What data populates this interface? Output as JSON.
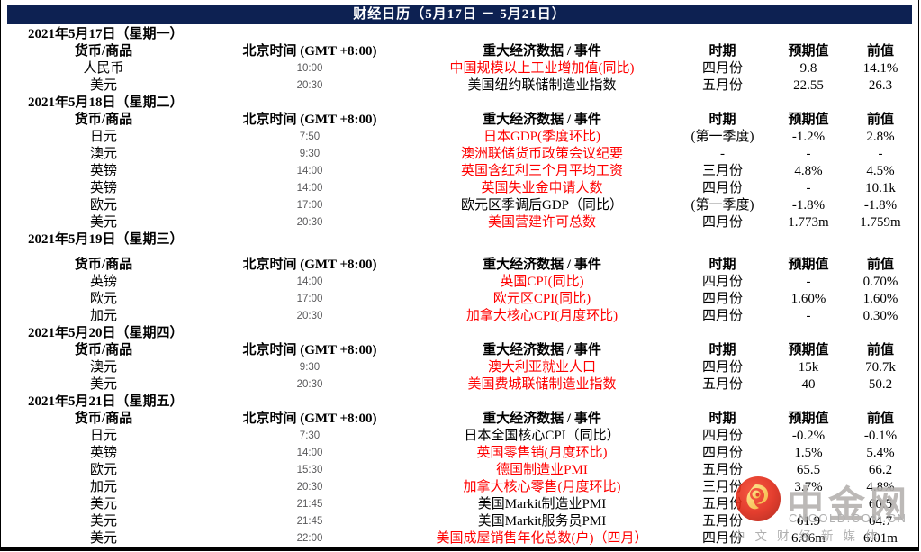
{
  "title": "财经日历（5月17日 － 5月21日）",
  "table": {
    "headers": {
      "currency": "货币/商品",
      "time": "北京时间 (GMT +8:00)",
      "event": "重大经济数据 / 事件",
      "period": "时期",
      "expected": "预期值",
      "previous": "前值"
    },
    "sections": [
      {
        "date": "2021年5月17日（星期一）",
        "rows": [
          {
            "currency": "人民币",
            "time": "10:00",
            "event": "中国规模以上工业增加值(同比)",
            "highlight": true,
            "period": "四月份",
            "expected": "9.8",
            "previous": "14.1%"
          },
          {
            "currency": "美元",
            "time": "20:30",
            "event": "美国纽约联储制造业指数",
            "highlight": false,
            "period": "五月份",
            "expected": "22.55",
            "previous": "26.3"
          }
        ]
      },
      {
        "date": "2021年5月18日（星期二）",
        "rows": [
          {
            "currency": "日元",
            "time": "7:50",
            "event": "日本GDP(季度环比)",
            "highlight": true,
            "period": "(第一季度)",
            "expected": "-1.2%",
            "previous": "2.8%"
          },
          {
            "currency": "澳元",
            "time": "9:30",
            "event": "澳洲联储货币政策会议纪要",
            "highlight": true,
            "period": "-",
            "expected": "-",
            "previous": "-"
          },
          {
            "currency": "英镑",
            "time": "14:00",
            "event": "英国含红利三个月平均工资",
            "highlight": true,
            "period": "三月份",
            "expected": "4.8%",
            "previous": "4.5%"
          },
          {
            "currency": "英镑",
            "time": "14:00",
            "event": "英国失业金申请人数",
            "highlight": true,
            "period": "四月份",
            "expected": "-",
            "previous": "10.1k"
          },
          {
            "currency": "欧元",
            "time": "17:00",
            "event": "欧元区季调后GDP（同比）",
            "highlight": false,
            "period": "(第一季度)",
            "expected": "-1.8%",
            "previous": "-1.8%"
          },
          {
            "currency": "美元",
            "time": "20:30",
            "event": "美国营建许可总数",
            "highlight": true,
            "period": "四月份",
            "expected": "1.773m",
            "previous": "1.759m"
          }
        ]
      },
      {
        "date": "2021年5月19日（星期三）",
        "gap": true,
        "rows": [
          {
            "currency": "英镑",
            "time": "14:00",
            "event": "英国CPI(同比)",
            "highlight": true,
            "period": "四月份",
            "expected": "-",
            "previous": "0.70%"
          },
          {
            "currency": "欧元",
            "time": "17:00",
            "event": "欧元区CPI(同比)",
            "highlight": true,
            "period": "四月份",
            "expected": "1.60%",
            "previous": "1.60%"
          },
          {
            "currency": "加元",
            "time": "20:30",
            "event": "加拿大核心CPI(月度环比)",
            "highlight": true,
            "period": "四月份",
            "expected": "-",
            "previous": "0.30%"
          }
        ]
      },
      {
        "date": "2021年5月20日（星期四）",
        "rows": [
          {
            "currency": "澳元",
            "time": "9:30",
            "event": "澳大利亚就业人口",
            "highlight": true,
            "period": "四月份",
            "expected": "15k",
            "previous": "70.7k"
          },
          {
            "currency": "美元",
            "time": "20:30",
            "event": "美国费城联储制造业指数",
            "highlight": true,
            "period": "五月份",
            "expected": "40",
            "previous": "50.2"
          }
        ]
      },
      {
        "date": "2021年5月21日（星期五）",
        "rows": [
          {
            "currency": "日元",
            "time": "7:30",
            "event": "日本全国核心CPI（同比）",
            "highlight": false,
            "period": "四月份",
            "expected": "-0.2%",
            "previous": "-0.1%"
          },
          {
            "currency": "英镑",
            "time": "14:00",
            "event": "英国零售销(月度环比)",
            "highlight": true,
            "period": "四月份",
            "expected": "1.5%",
            "previous": "5.4%"
          },
          {
            "currency": "欧元",
            "time": "15:30",
            "event": "德国制造业PMI",
            "highlight": true,
            "period": "五月份",
            "expected": "65.5",
            "previous": "66.2"
          },
          {
            "currency": "加元",
            "time": "20:30",
            "event": "加拿大核心零售(月度环比)",
            "highlight": true,
            "period": "三月份",
            "expected": "3.7%",
            "previous": "4.8%"
          },
          {
            "currency": "美元",
            "time": "21:45",
            "event": "美国Markit制造业PMI",
            "highlight": false,
            "period": "五月份",
            "expected": "",
            "previous": "60.5"
          },
          {
            "currency": "美元",
            "time": "21:45",
            "event": "美国Markit服务员PMI",
            "highlight": false,
            "period": "五月份",
            "expected": "61.9",
            "previous": "64.7"
          },
          {
            "currency": "美元",
            "time": "22:00",
            "event": "美国成屋销售年化总数(户)（四月）",
            "highlight": true,
            "period": "四月份",
            "expected": "6.06m",
            "previous": "6.01m"
          }
        ]
      }
    ]
  },
  "watermark": {
    "brand": "中金网",
    "domain": "CNGOLD.COM.CN",
    "slogan": "中文财经新媒体"
  },
  "colors": {
    "title_bg": "#0d2152",
    "title_text": "#ffffff",
    "highlight_text": "#ff0000",
    "body_text": "#000000",
    "time_text": "#58585a",
    "logo_red": "#e02412",
    "logo_yellow": "#f7c råa43"
  }
}
